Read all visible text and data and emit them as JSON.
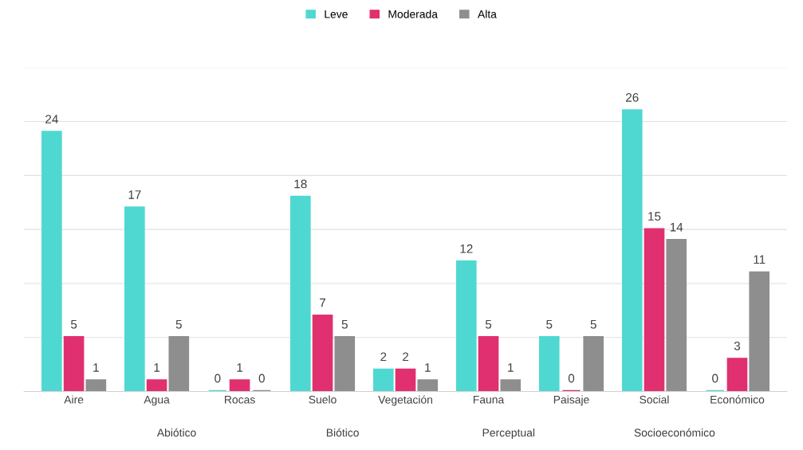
{
  "chart_data": {
    "type": "bar",
    "categories": [
      "Aire",
      "Agua",
      "Rocas",
      "Suelo",
      "Vegetación",
      "Fauna",
      "Paisaje",
      "Social",
      "Económico"
    ],
    "series": [
      {
        "name": "Leve",
        "color": "#4fd8d2",
        "values": [
          24,
          17,
          0,
          18,
          2,
          12,
          5,
          26,
          0
        ]
      },
      {
        "name": "Moderada",
        "color": "#e0306f",
        "values": [
          5,
          1,
          1,
          7,
          2,
          5,
          0,
          15,
          3
        ]
      },
      {
        "name": "Alta",
        "color": "#8e8e8e",
        "values": [
          1,
          5,
          0,
          5,
          1,
          1,
          5,
          14,
          11
        ]
      }
    ],
    "annotations": [
      "Abiótico",
      "Biótico",
      "Perceptual",
      "Socioeconómico"
    ],
    "ylim": [
      0,
      30
    ],
    "yticks": [
      {
        "value": 0,
        "label": null
      },
      {
        "value": 5,
        "label": null
      },
      {
        "value": 10,
        "label": null
      },
      {
        "value": 15,
        "label": null
      },
      {
        "value": 20,
        "label": null
      },
      {
        "value": 25,
        "label": null
      },
      {
        "value": 30,
        "label": null
      }
    ],
    "tick_labels": "x",
    "grid": "y",
    "legend": "top",
    "data_labels": true
  }
}
